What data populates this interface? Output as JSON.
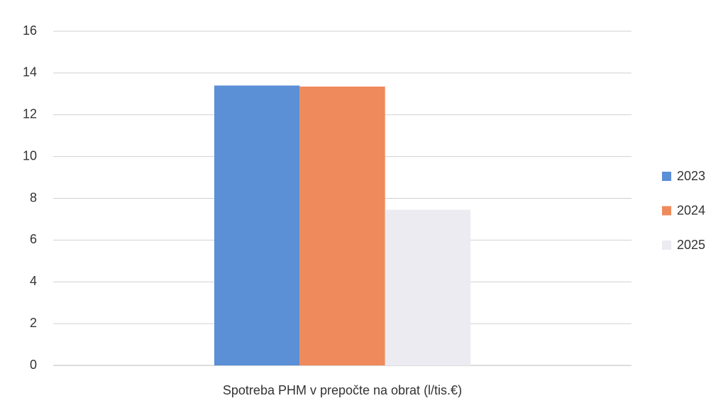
{
  "chart_data": {
    "type": "bar",
    "categories": [
      "Spotreba PHM v prepočte na obrat (l/tis.€)"
    ],
    "series": [
      {
        "name": "2023",
        "color": "#5b8fd6",
        "values": [
          13.4
        ]
      },
      {
        "name": "2024",
        "color": "#ef8a5c",
        "values": [
          13.35
        ]
      },
      {
        "name": "2025",
        "color": "#ebebf1",
        "values": [
          7.45
        ]
      }
    ],
    "ylim": [
      0,
      16
    ],
    "yticks": [
      0,
      2,
      4,
      6,
      8,
      10,
      12,
      14,
      16
    ],
    "grid": true,
    "legend": "right"
  }
}
